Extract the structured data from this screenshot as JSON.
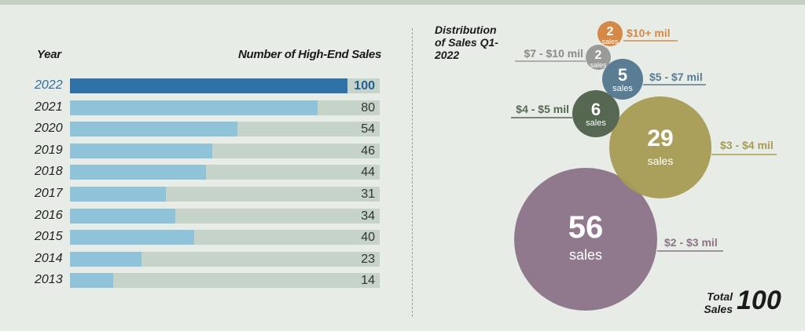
{
  "bar_chart": {
    "year_header": "Year",
    "value_header": "Number of High-End Sales"
  },
  "bubble_chart": {
    "title": "Distribution of Sales Q1- 2022",
    "total_label": "Total Sales",
    "total_value": "100",
    "unit_label": "sales"
  },
  "colors": {
    "bar_highlight": "#2e72a7",
    "bar_normal": "#8ec3d9",
    "track": "#c5d3c8",
    "bubble_2_3": "#8b7387",
    "bubble_3_4": "#a89b54",
    "bubble_4_5": "#566752",
    "bubble_5_7": "#5a7d93",
    "bubble_7_10": "#9a9a98",
    "bubble_10plus": "#d58944"
  },
  "chart_data": [
    {
      "type": "bar",
      "orientation": "horizontal",
      "xlabel": "Number of High-End Sales",
      "ylabel": "Year",
      "xlim": [
        0,
        100
      ],
      "categories": [
        "2022",
        "2021",
        "2020",
        "2019",
        "2018",
        "2017",
        "2016",
        "2015",
        "2014",
        "2013"
      ],
      "values": [
        100,
        80,
        54,
        46,
        44,
        31,
        34,
        40,
        23,
        14
      ],
      "highlight": "2022"
    },
    {
      "type": "bubble",
      "title": "Distribution of Sales Q1- 2022",
      "categories": [
        "$10+ mil",
        "$7 - $10 mil",
        "$5 - $7 mil",
        "$4 - $5 mil",
        "$3 - $4 mil",
        "$2 - $3 mil"
      ],
      "values": [
        2,
        2,
        5,
        6,
        29,
        56
      ],
      "value_unit": "sales",
      "total": 100
    }
  ]
}
